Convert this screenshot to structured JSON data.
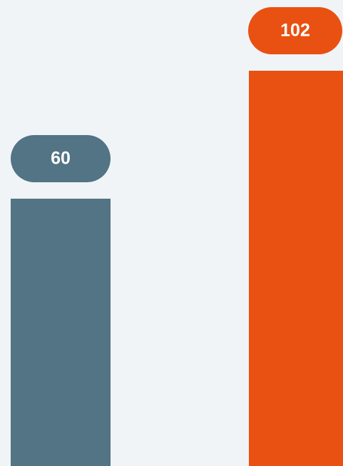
{
  "chart_data": {
    "type": "bar",
    "categories": [
      null,
      null
    ],
    "values": [
      60,
      102
    ],
    "colors": [
      "#527484",
      "#e85112"
    ]
  }
}
